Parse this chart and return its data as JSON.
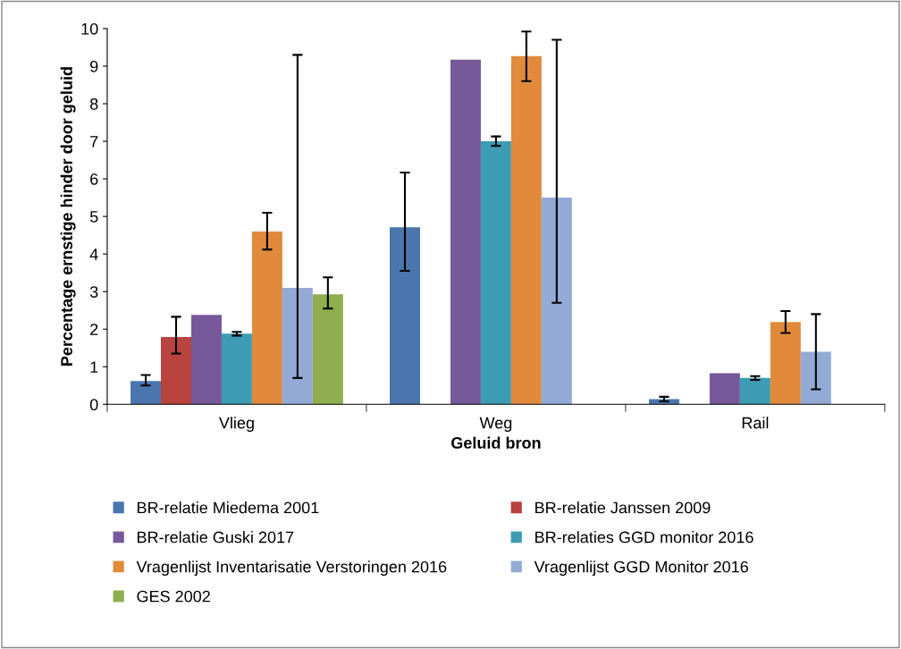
{
  "chart_data": {
    "type": "bar",
    "xlabel": "Geluid bron",
    "ylabel": "Percentage ernstige hinder door geluid",
    "categories": [
      "Vlieg",
      "Weg",
      "Rail"
    ],
    "series": [
      {
        "name": "BR-relatie Miedema 2001",
        "color": "#4a76ad",
        "values": [
          0.62,
          4.71,
          0.14
        ],
        "errors": [
          [
            0.5,
            0.78
          ],
          [
            3.55,
            6.17
          ],
          [
            0.08,
            0.2
          ]
        ]
      },
      {
        "name": "BR-relatie Janssen 2009",
        "color": "#b8433f",
        "values": [
          1.79,
          null,
          null
        ],
        "errors": [
          [
            1.35,
            2.33
          ],
          null,
          null
        ]
      },
      {
        "name": "BR-relatie Guski 2017",
        "color": "#77589a",
        "values": [
          2.38,
          9.17,
          0.83
        ]
      },
      {
        "name": "BR-relaties GGD monitor 2016",
        "color": "#3c9cb3",
        "values": [
          1.88,
          7.0,
          0.7
        ],
        "errors": [
          [
            1.83,
            1.93
          ],
          [
            6.88,
            7.13
          ],
          [
            0.65,
            0.75
          ]
        ]
      },
      {
        "name": "Vragenlijst Inventarisatie Verstoringen 2016",
        "color": "#e08a3c",
        "values": [
          4.6,
          9.27,
          2.19
        ],
        "errors": [
          [
            4.12,
            5.1
          ],
          [
            8.6,
            9.92
          ],
          [
            1.9,
            2.48
          ]
        ]
      },
      {
        "name": "Vragenlijst GGD Monitor 2016",
        "color": "#93aad6",
        "values": [
          3.1,
          5.5,
          1.4
        ],
        "errors": [
          [
            0.7,
            9.3
          ],
          [
            2.7,
            9.7
          ],
          [
            0.4,
            2.4
          ]
        ]
      },
      {
        "name": "GES 2002",
        "color": "#8fae4f",
        "values": [
          2.93,
          null,
          null
        ],
        "errors": [
          [
            2.55,
            3.38
          ],
          null,
          null
        ]
      }
    ],
    "ylim": [
      0,
      10
    ],
    "yticks": [
      0,
      1,
      2,
      3,
      4,
      5,
      6,
      7,
      8,
      9,
      10
    ],
    "grid": false,
    "legend": "bottom"
  }
}
